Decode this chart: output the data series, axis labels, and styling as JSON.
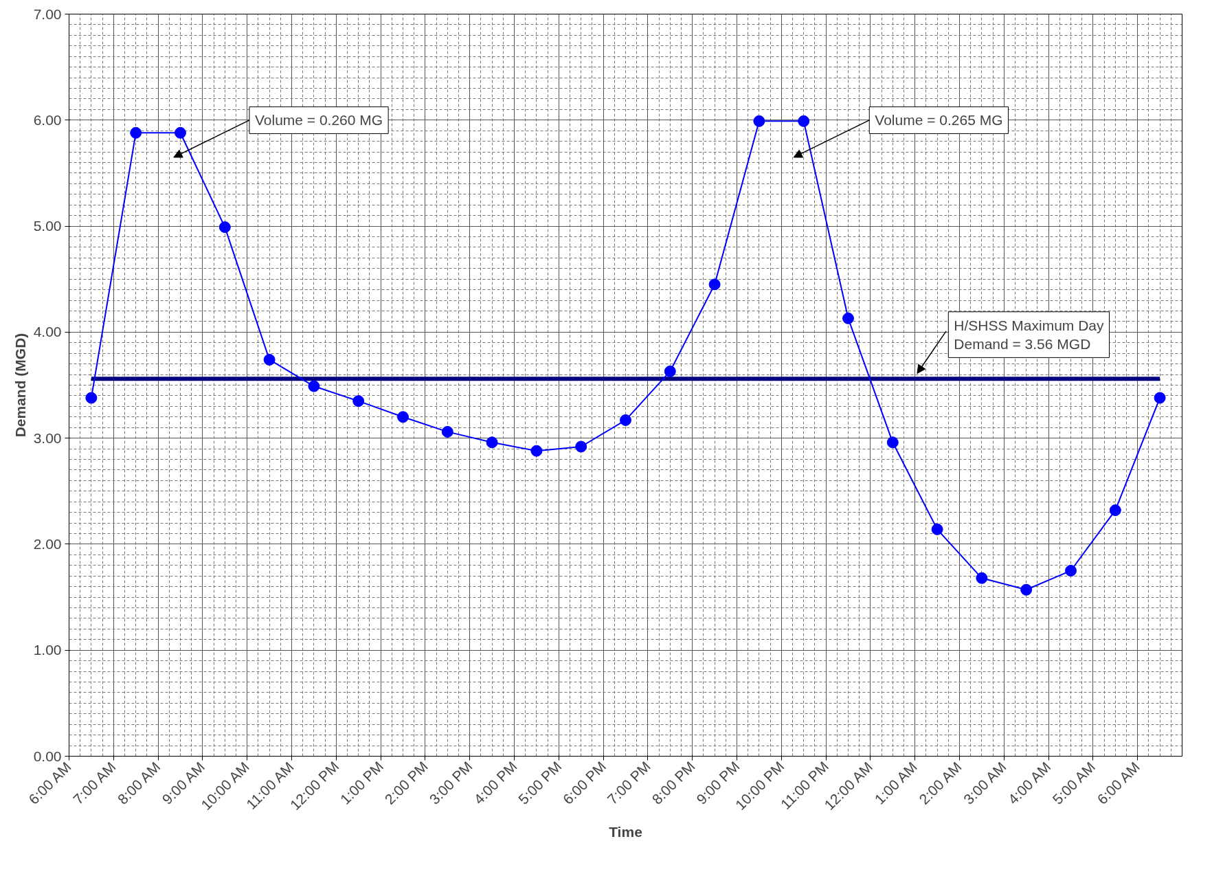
{
  "chart_data": {
    "type": "line",
    "xlabel": "Time",
    "ylabel": "Demand (MGD)",
    "x": [
      "2000-01-01T06:30",
      "2000-01-01T07:30",
      "2000-01-01T08:30",
      "2000-01-01T09:30",
      "2000-01-01T10:30",
      "2000-01-01T11:30",
      "2000-01-01T12:30",
      "2000-01-01T13:30",
      "2000-01-01T14:30",
      "2000-01-01T15:30",
      "2000-01-01T16:30",
      "2000-01-01T17:30",
      "2000-01-01T18:30",
      "2000-01-01T19:30",
      "2000-01-01T20:30",
      "2000-01-01T21:30",
      "2000-01-01T22:30",
      "2000-01-01T23:30",
      "2000-01-02T00:30",
      "2000-01-02T01:30",
      "2000-01-02T02:30",
      "2000-01-02T03:30",
      "2000-01-02T04:30",
      "2000-01-02T05:30",
      "2000-01-02T06:30"
    ],
    "series": [
      {
        "color": "#0000ff",
        "values": [
          3.38,
          5.88,
          5.88,
          4.99,
          3.74,
          3.49,
          3.35,
          3.2,
          3.06,
          2.96,
          2.88,
          2.92,
          3.17,
          3.63,
          4.45,
          5.99,
          5.99,
          4.13,
          2.96,
          2.14,
          1.68,
          1.57,
          1.75,
          2.32,
          3.38
        ]
      }
    ],
    "marker": "circle",
    "line_style": "solid",
    "grid": true,
    "xlim": [
      "2000-01-01T06:00",
      "2000-01-02T07:00"
    ],
    "xticks": [
      {
        "value": "2000-01-01T06:00",
        "label": "6:00 AM"
      },
      {
        "value": "2000-01-01T07:00",
        "label": "7:00 AM"
      },
      {
        "value": "2000-01-01T08:00",
        "label": "8:00 AM"
      },
      {
        "value": "2000-01-01T09:00",
        "label": "9:00 AM"
      },
      {
        "value": "2000-01-01T10:00",
        "label": "10:00 AM"
      },
      {
        "value": "2000-01-01T11:00",
        "label": "11:00 AM"
      },
      {
        "value": "2000-01-01T12:00",
        "label": "12:00 PM"
      },
      {
        "value": "2000-01-01T13:00",
        "label": "1:00 PM"
      },
      {
        "value": "2000-01-01T14:00",
        "label": "2:00 PM"
      },
      {
        "value": "2000-01-01T15:00",
        "label": "3:00 PM"
      },
      {
        "value": "2000-01-01T16:00",
        "label": "4:00 PM"
      },
      {
        "value": "2000-01-01T17:00",
        "label": "5:00 PM"
      },
      {
        "value": "2000-01-01T18:00",
        "label": "6:00 PM"
      },
      {
        "value": "2000-01-01T19:00",
        "label": "7:00 PM"
      },
      {
        "value": "2000-01-01T20:00",
        "label": "8:00 PM"
      },
      {
        "value": "2000-01-01T21:00",
        "label": "9:00 PM"
      },
      {
        "value": "2000-01-01T22:00",
        "label": "10:00 PM"
      },
      {
        "value": "2000-01-01T23:00",
        "label": "11:00 PM"
      },
      {
        "value": "2000-01-02T00:00",
        "label": "12:00 AM"
      },
      {
        "value": "2000-01-02T01:00",
        "label": "1:00 AM"
      },
      {
        "value": "2000-01-02T02:00",
        "label": "2:00 AM"
      },
      {
        "value": "2000-01-02T03:00",
        "label": "3:00 AM"
      },
      {
        "value": "2000-01-02T04:00",
        "label": "4:00 AM"
      },
      {
        "value": "2000-01-02T05:00",
        "label": "5:00 AM"
      },
      {
        "value": "2000-01-02T06:00",
        "label": "6:00 AM"
      }
    ],
    "ylim": [
      0,
      7
    ],
    "yticks": [
      {
        "value": 0,
        "label": "0.00"
      },
      {
        "value": 1,
        "label": "1.00"
      },
      {
        "value": 2,
        "label": "2.00"
      },
      {
        "value": 3,
        "label": "3.00"
      },
      {
        "value": 4,
        "label": "4.00"
      },
      {
        "value": 5,
        "label": "5.00"
      },
      {
        "value": 6,
        "label": "6.00"
      },
      {
        "value": 7,
        "label": "7.00"
      }
    ],
    "ref_lines": [
      {
        "axis": "y",
        "value": 3.56,
        "label": "H/SHSS Maximum Day\nDemand = 3.56 MGD",
        "color": "#000080"
      }
    ],
    "annotations": [
      "Volume = 0.260 MG",
      "Volume = 0.265 MG"
    ]
  }
}
